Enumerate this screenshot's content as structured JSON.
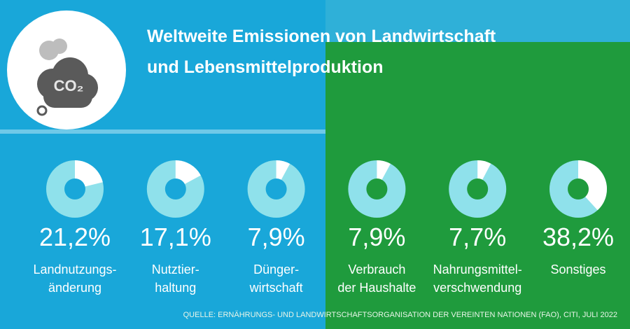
{
  "icon": {
    "label": "CO₂"
  },
  "chart_data": {
    "type": "donut",
    "title": "Weltweite Emissionen von Landwirtschaft\nund Lebensmittelproduktion",
    "categories": [
      "Landnutzungs-\nänderung",
      "Nutztier-\nhaltung",
      "Dünger-\nwirtschaft",
      "Verbrauch\nder Haushalte",
      "Nahrungsmittel-\nverschwendung",
      "Sonstiges"
    ],
    "values": [
      21.2,
      17.1,
      7.9,
      7.9,
      7.7,
      38.2
    ],
    "value_labels": [
      "21,2%",
      "17,1%",
      "7,9%",
      "7,9%",
      "7,7%",
      "38,2%"
    ],
    "color": "#ffffff",
    "source": "QUELLE: ERNÄHRUNGS- UND LANDWIRTSCHAFTSORGANISATION DER VEREINTEN NATIONEN (FAO), CITI, JULI 2022"
  }
}
